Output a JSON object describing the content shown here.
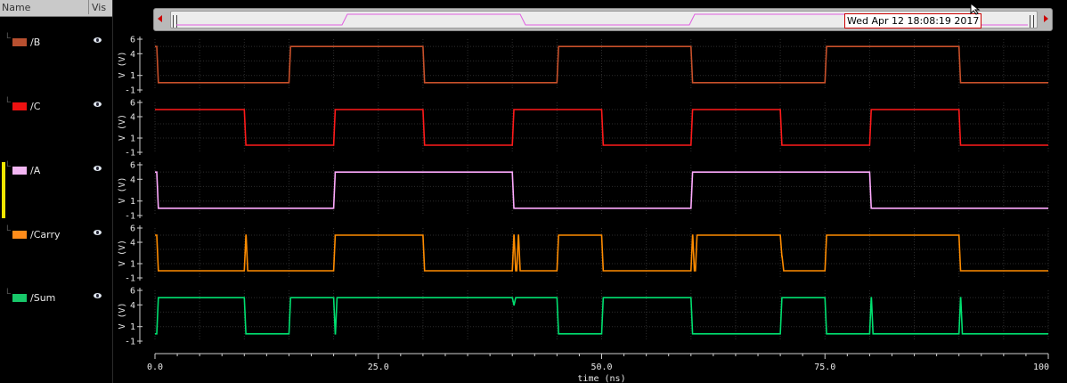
{
  "browser": {
    "col_name": "Name",
    "col_vis": "Vis",
    "signals": [
      {
        "label": "/B",
        "color": "#c8502a",
        "swatch": "#b85030"
      },
      {
        "label": "/C",
        "color": "#ff1a1a",
        "swatch": "#ee1111"
      },
      {
        "label": "/A",
        "color": "#ffaaff",
        "swatch": "#f3b6f3"
      },
      {
        "label": "/Carry",
        "color": "#ff8c00",
        "swatch": "#ff8c1a"
      },
      {
        "label": "/Sum",
        "color": "#00e070",
        "swatch": "#18c86a"
      }
    ]
  },
  "scroll": {
    "date_label": "Wed Apr 12 18:08:19 2017"
  },
  "axis": {
    "ylabel": "V (V)",
    "yticks": [
      "6",
      "4",
      "1",
      "-1"
    ],
    "xticks": [
      "0.0",
      "25.0",
      "50.0",
      "75.0",
      "100"
    ],
    "xlabel": "time (ns)"
  },
  "chart_data": {
    "type": "line",
    "xlabel": "time (ns)",
    "ylabel": "V (V)",
    "xlim": [
      0,
      100
    ],
    "ylim": [
      -1,
      6
    ],
    "series": [
      {
        "name": "/B",
        "steps": [
          [
            0,
            5
          ],
          [
            0.2,
            0
          ],
          [
            15,
            5
          ],
          [
            30,
            0
          ],
          [
            45,
            5
          ],
          [
            60,
            0
          ],
          [
            75,
            5
          ],
          [
            90,
            0
          ],
          [
            100,
            0
          ]
        ]
      },
      {
        "name": "/C",
        "steps": [
          [
            0,
            5
          ],
          [
            10,
            0
          ],
          [
            20,
            5
          ],
          [
            30,
            0
          ],
          [
            40,
            5
          ],
          [
            50,
            0
          ],
          [
            60,
            5
          ],
          [
            70,
            0
          ],
          [
            80,
            5
          ],
          [
            90,
            0
          ],
          [
            100,
            0
          ]
        ]
      },
      {
        "name": "/A",
        "steps": [
          [
            0,
            5
          ],
          [
            0.2,
            0
          ],
          [
            20,
            5
          ],
          [
            40,
            0
          ],
          [
            60,
            5
          ],
          [
            80,
            0
          ],
          [
            100,
            0
          ]
        ]
      },
      {
        "name": "/Carry",
        "steps": [
          [
            0,
            5
          ],
          [
            0.2,
            0
          ],
          [
            10,
            5
          ],
          [
            10.2,
            0
          ],
          [
            20,
            5
          ],
          [
            30,
            0
          ],
          [
            40,
            5
          ],
          [
            40.2,
            0
          ],
          [
            40.5,
            5
          ],
          [
            40.7,
            0
          ],
          [
            45,
            5
          ],
          [
            50,
            0
          ],
          [
            60,
            5
          ],
          [
            60.2,
            0
          ],
          [
            60.5,
            5
          ],
          [
            70,
            2
          ],
          [
            70.2,
            0
          ],
          [
            75,
            5
          ],
          [
            90,
            0
          ],
          [
            100,
            0
          ]
        ]
      },
      {
        "name": "/Sum",
        "steps": [
          [
            0,
            0
          ],
          [
            0.2,
            5
          ],
          [
            10,
            0
          ],
          [
            15,
            5
          ],
          [
            20,
            0
          ],
          [
            20.2,
            5
          ],
          [
            40,
            4
          ],
          [
            40.2,
            5
          ],
          [
            45,
            0
          ],
          [
            50,
            5
          ],
          [
            60,
            0
          ],
          [
            70,
            5
          ],
          [
            75,
            0
          ],
          [
            80,
            5
          ],
          [
            80.2,
            0
          ],
          [
            90,
            5
          ],
          [
            90.2,
            0
          ],
          [
            100,
            0
          ]
        ]
      }
    ]
  }
}
